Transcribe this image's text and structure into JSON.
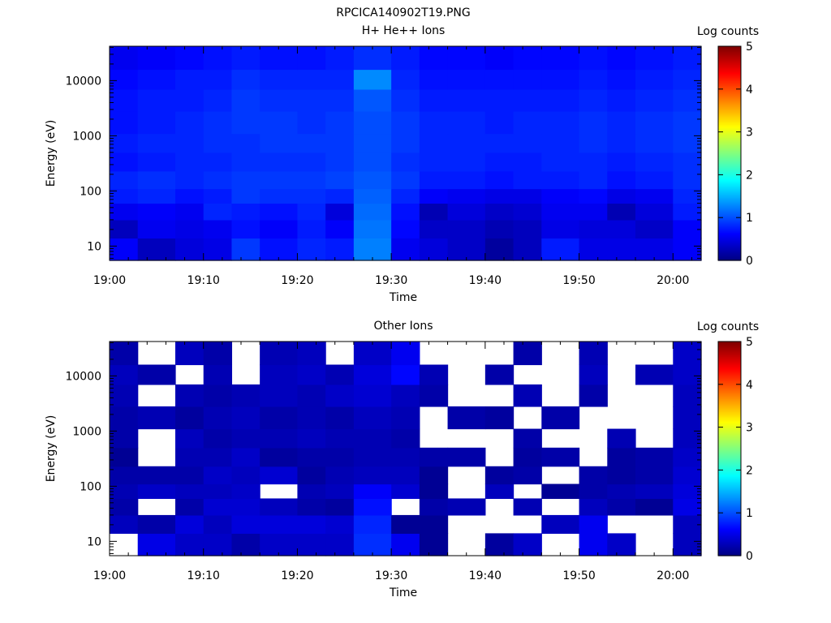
{
  "page_title": "RPCICA140902T19.PNG",
  "colorbar": {
    "label": "Log counts",
    "ticks": [
      "0",
      "1",
      "2",
      "3",
      "4",
      "5"
    ],
    "range": [
      0,
      5
    ],
    "colormap": "jet"
  },
  "chart_data": [
    {
      "type": "heatmap",
      "title": "H+ He++ Ions",
      "xlabel": "Time",
      "ylabel": "Energy (eV)",
      "x_ticks": [
        "19:00",
        "19:10",
        "19:20",
        "19:30",
        "19:40",
        "19:50",
        "20:00"
      ],
      "y_ticks": [
        "10",
        "100",
        "1000",
        "10000"
      ],
      "y_scale": "log",
      "ylim": [
        5.5,
        42000
      ],
      "xlim": [
        "19:00",
        "20:03"
      ],
      "time_bins_start": [
        "19:00",
        "19:03",
        "19:07",
        "19:10",
        "19:13",
        "19:16",
        "19:20",
        "19:23",
        "19:26",
        "19:30",
        "19:33",
        "19:36",
        "19:40",
        "19:43",
        "19:46",
        "19:50",
        "19:53",
        "19:56",
        "20:00"
      ],
      "energy_bands_eV": [
        [
          5.5,
          14
        ],
        [
          14,
          30
        ],
        [
          30,
          60
        ],
        [
          60,
          110
        ],
        [
          110,
          230
        ],
        [
          230,
          500
        ],
        [
          500,
          1100
        ],
        [
          1100,
          2800
        ],
        [
          2800,
          7000
        ],
        [
          7000,
          16000
        ],
        [
          16000,
          42000
        ]
      ],
      "log_counts": [
        [
          0.6,
          0.3,
          0.45,
          0.5,
          0.9,
          0.7,
          0.8,
          0.75,
          1.25,
          0.55,
          0.45,
          0.35,
          0.15,
          0.3,
          0.75,
          0.5,
          0.5,
          0.5,
          0.6
        ],
        [
          0.3,
          0.55,
          0.5,
          0.55,
          0.7,
          0.6,
          0.75,
          0.6,
          1.2,
          0.65,
          0.35,
          0.35,
          0.25,
          0.3,
          0.5,
          0.45,
          0.45,
          0.35,
          0.6
        ],
        [
          0.55,
          0.6,
          0.55,
          0.8,
          0.75,
          0.7,
          0.8,
          0.45,
          1.15,
          0.7,
          0.25,
          0.45,
          0.35,
          0.4,
          0.55,
          0.55,
          0.25,
          0.45,
          0.75
        ],
        [
          0.75,
          0.8,
          0.7,
          0.75,
          0.9,
          0.85,
          0.85,
          0.8,
          1.1,
          0.8,
          0.6,
          0.55,
          0.5,
          0.5,
          0.6,
          0.65,
          0.5,
          0.55,
          0.8
        ],
        [
          0.8,
          0.85,
          0.8,
          0.85,
          0.9,
          0.9,
          0.9,
          0.95,
          1.05,
          0.9,
          0.75,
          0.75,
          0.7,
          0.75,
          0.75,
          0.8,
          0.7,
          0.75,
          0.85
        ],
        [
          0.7,
          0.75,
          0.8,
          0.8,
          0.85,
          0.85,
          0.85,
          0.9,
          1.0,
          0.85,
          0.8,
          0.8,
          0.75,
          0.75,
          0.8,
          0.8,
          0.75,
          0.8,
          0.85
        ],
        [
          0.75,
          0.8,
          0.8,
          0.85,
          0.85,
          0.9,
          0.9,
          0.9,
          1.0,
          0.9,
          0.8,
          0.8,
          0.8,
          0.8,
          0.8,
          0.85,
          0.8,
          0.85,
          0.9
        ],
        [
          0.7,
          0.75,
          0.8,
          0.85,
          0.9,
          0.9,
          0.85,
          0.9,
          1.0,
          0.9,
          0.8,
          0.8,
          0.75,
          0.8,
          0.8,
          0.85,
          0.8,
          0.85,
          0.9
        ],
        [
          0.7,
          0.75,
          0.75,
          0.8,
          0.9,
          0.85,
          0.85,
          0.85,
          1.05,
          0.85,
          0.75,
          0.75,
          0.75,
          0.75,
          0.75,
          0.8,
          0.75,
          0.8,
          0.85
        ],
        [
          0.65,
          0.7,
          0.75,
          0.75,
          0.85,
          0.8,
          0.8,
          0.8,
          1.3,
          0.8,
          0.7,
          0.7,
          0.7,
          0.7,
          0.7,
          0.75,
          0.7,
          0.75,
          0.8
        ],
        [
          0.55,
          0.6,
          0.65,
          0.7,
          0.75,
          0.7,
          0.7,
          0.75,
          0.85,
          0.75,
          0.65,
          0.65,
          0.6,
          0.65,
          0.65,
          0.7,
          0.65,
          0.7,
          0.75
        ]
      ]
    },
    {
      "type": "heatmap",
      "title": "Other Ions",
      "xlabel": "Time",
      "ylabel": "Energy (eV)",
      "x_ticks": [
        "19:00",
        "19:10",
        "19:20",
        "19:30",
        "19:40",
        "19:50",
        "20:00"
      ],
      "y_ticks": [
        "10",
        "100",
        "1000",
        "10000"
      ],
      "y_scale": "log",
      "ylim": [
        5.5,
        42000
      ],
      "xlim": [
        "19:00",
        "20:03"
      ],
      "time_bins_start": [
        "19:00",
        "19:03",
        "19:07",
        "19:10",
        "19:13",
        "19:16",
        "19:20",
        "19:23",
        "19:26",
        "19:30",
        "19:33",
        "19:36",
        "19:40",
        "19:43",
        "19:46",
        "19:50",
        "19:53",
        "19:56",
        "20:00"
      ],
      "energy_bands_eV": [
        [
          5.5,
          14
        ],
        [
          14,
          30
        ],
        [
          30,
          60
        ],
        [
          60,
          110
        ],
        [
          110,
          230
        ],
        [
          230,
          500
        ],
        [
          500,
          1100
        ],
        [
          1100,
          2800
        ],
        [
          2800,
          7000
        ],
        [
          7000,
          16000
        ],
        [
          16000,
          42000
        ]
      ],
      "log_counts": [
        [
          null,
          0.5,
          0.35,
          0.35,
          0.2,
          0.35,
          0.35,
          0.35,
          0.85,
          0.55,
          0.1,
          null,
          0.15,
          0.35,
          null,
          0.55,
          0.35,
          null,
          0.3
        ],
        [
          0.3,
          0.2,
          0.45,
          0.3,
          0.45,
          0.45,
          0.45,
          0.4,
          0.8,
          0.1,
          0.1,
          null,
          null,
          null,
          0.3,
          0.55,
          null,
          null,
          0.3
        ],
        [
          0.2,
          null,
          0.2,
          0.4,
          0.4,
          0.3,
          0.2,
          0.15,
          0.7,
          null,
          0.2,
          0.25,
          null,
          0.25,
          null,
          0.3,
          0.2,
          0.1,
          0.5
        ],
        [
          0.25,
          0.35,
          0.3,
          0.3,
          0.35,
          null,
          0.25,
          0.3,
          0.6,
          0.4,
          0.1,
          null,
          0.3,
          null,
          0.1,
          0.2,
          0.25,
          0.3,
          0.45
        ],
        [
          0.2,
          0.2,
          0.2,
          0.35,
          0.3,
          0.4,
          0.15,
          0.25,
          0.3,
          0.3,
          0.1,
          null,
          0.15,
          0.2,
          null,
          0.2,
          0.15,
          0.2,
          0.4
        ],
        [
          0.1,
          null,
          0.25,
          0.25,
          0.35,
          0.15,
          0.2,
          0.2,
          0.25,
          0.25,
          0.2,
          0.2,
          null,
          0.15,
          0.2,
          null,
          0.15,
          0.2,
          0.35
        ],
        [
          0.2,
          null,
          0.3,
          0.2,
          0.25,
          0.25,
          0.3,
          0.25,
          0.25,
          0.2,
          null,
          null,
          null,
          0.2,
          null,
          null,
          0.25,
          null,
          0.3
        ],
        [
          0.2,
          0.25,
          0.15,
          0.25,
          0.3,
          0.2,
          0.25,
          0.2,
          0.3,
          0.25,
          null,
          0.2,
          0.15,
          null,
          0.2,
          null,
          null,
          null,
          0.3
        ],
        [
          0.25,
          null,
          0.25,
          0.2,
          0.25,
          0.3,
          0.25,
          0.35,
          0.4,
          0.3,
          0.2,
          null,
          null,
          0.25,
          null,
          0.2,
          null,
          null,
          0.3
        ],
        [
          0.3,
          0.2,
          null,
          0.25,
          null,
          0.3,
          0.35,
          0.25,
          0.45,
          0.65,
          0.25,
          null,
          0.2,
          null,
          null,
          0.3,
          null,
          0.25,
          0.35
        ],
        [
          0.2,
          null,
          0.3,
          0.2,
          null,
          0.25,
          0.3,
          null,
          0.35,
          0.55,
          null,
          null,
          null,
          0.2,
          null,
          0.25,
          null,
          null,
          0.35
        ]
      ]
    }
  ]
}
